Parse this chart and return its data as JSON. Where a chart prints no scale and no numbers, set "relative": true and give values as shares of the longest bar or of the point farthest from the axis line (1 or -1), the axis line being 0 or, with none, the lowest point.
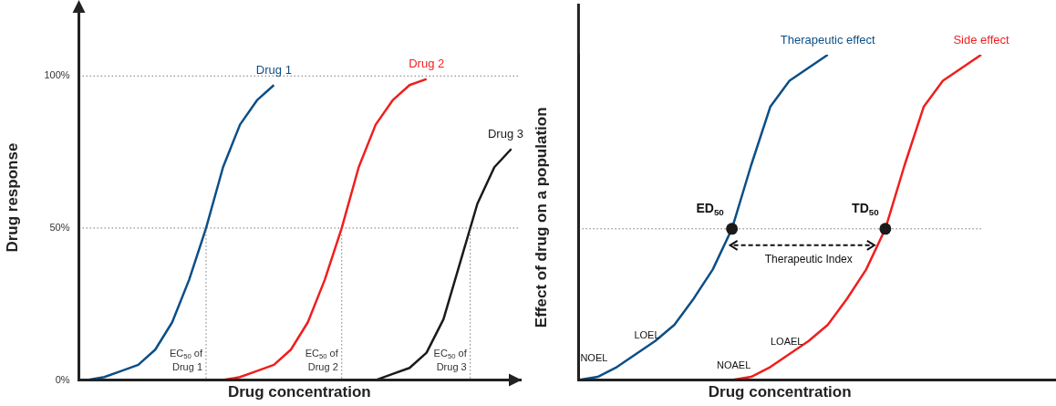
{
  "chart_data": [
    {
      "type": "line",
      "xlabel": "Drug concentration",
      "ylabel": "Drug response",
      "categories": [
        null,
        null,
        null,
        null,
        null,
        null,
        null,
        null,
        null,
        null,
        null,
        null,
        null,
        null,
        null,
        null,
        null,
        null,
        null,
        null,
        null,
        null,
        null,
        null,
        null,
        null
      ],
      "series": [
        {
          "name": "Drug 1",
          "color": "#0b4f87",
          "values": [
            0,
            1,
            3,
            5,
            10,
            19,
            33,
            50,
            70,
            84,
            92,
            97,
            null,
            null,
            null,
            null,
            null,
            null,
            null,
            null,
            null,
            null,
            null,
            null,
            null,
            null
          ]
        },
        {
          "name": "Drug 2",
          "color": "#f01e1e",
          "values": [
            null,
            null,
            null,
            null,
            null,
            null,
            null,
            null,
            0,
            1,
            3,
            5,
            10,
            19,
            33,
            50,
            70,
            84,
            92,
            97,
            99,
            null,
            null,
            null,
            null,
            null
          ]
        },
        {
          "name": "Drug 3",
          "color": "#1a1a1a",
          "values": [
            null,
            null,
            null,
            null,
            null,
            null,
            null,
            null,
            null,
            null,
            null,
            null,
            null,
            null,
            null,
            null,
            null,
            0,
            2,
            4,
            9,
            20,
            39,
            58,
            70,
            76
          ]
        }
      ],
      "ylim": [
        0,
        120
      ],
      "yticks": [
        {
          "value": 0,
          "label": "0%"
        },
        {
          "value": 50,
          "label": "50%"
        },
        {
          "value": 100,
          "label": "100%"
        }
      ],
      "tick_labels": "y",
      "grid": false,
      "legend": false,
      "marker": "none",
      "line_style": "solid",
      "ref_lines": [
        {
          "axis": "y",
          "value": 50,
          "line_style": "dotted"
        },
        {
          "axis": "y",
          "value": 100,
          "line_style": "dotted"
        }
      ],
      "annotations": [
        "EC$_{50}$ of Drug 1",
        "EC$_{50}$ of Drug 2",
        "EC$_{50}$ of Drug 3"
      ]
    },
    {
      "type": "line",
      "relative": true,
      "xlabel": "Drug concentration",
      "ylabel": "Effect of drug on a population",
      "categories": [
        null,
        null,
        null,
        null,
        null,
        null,
        null,
        null,
        null,
        null,
        null,
        null,
        null,
        null,
        null,
        null,
        null,
        null,
        null,
        null,
        null,
        null
      ],
      "series": [
        {
          "name": "Therapeutic effect",
          "color": "#0b4f87",
          "values": [
            0,
            0.01,
            0.04,
            0.08,
            0.12,
            0.17,
            0.25,
            0.34,
            0.465,
            0.66,
            0.84,
            0.92,
            0.96,
            1,
            null,
            null,
            null,
            null,
            null,
            null,
            null,
            null
          ]
        },
        {
          "name": "Side effect",
          "color": "#f01e1e",
          "values": [
            null,
            null,
            null,
            null,
            null,
            null,
            null,
            null,
            0,
            0.01,
            0.04,
            0.08,
            0.12,
            0.17,
            0.25,
            0.34,
            0.465,
            0.66,
            0.84,
            0.92,
            0.96,
            1
          ]
        }
      ],
      "tick_labels": false,
      "grid": false,
      "legend": false,
      "marker": "none",
      "line_style": "solid",
      "ref_lines": [
        {
          "axis": "y",
          "value": 0.465,
          "line_style": "dotted"
        }
      ],
      "annotations": [
        "ED$_{50}$",
        "TD$_{50}$",
        "Therapeutic Index",
        "NOEL",
        "LOEL",
        "NOAEL",
        "LOAEL"
      ]
    }
  ]
}
